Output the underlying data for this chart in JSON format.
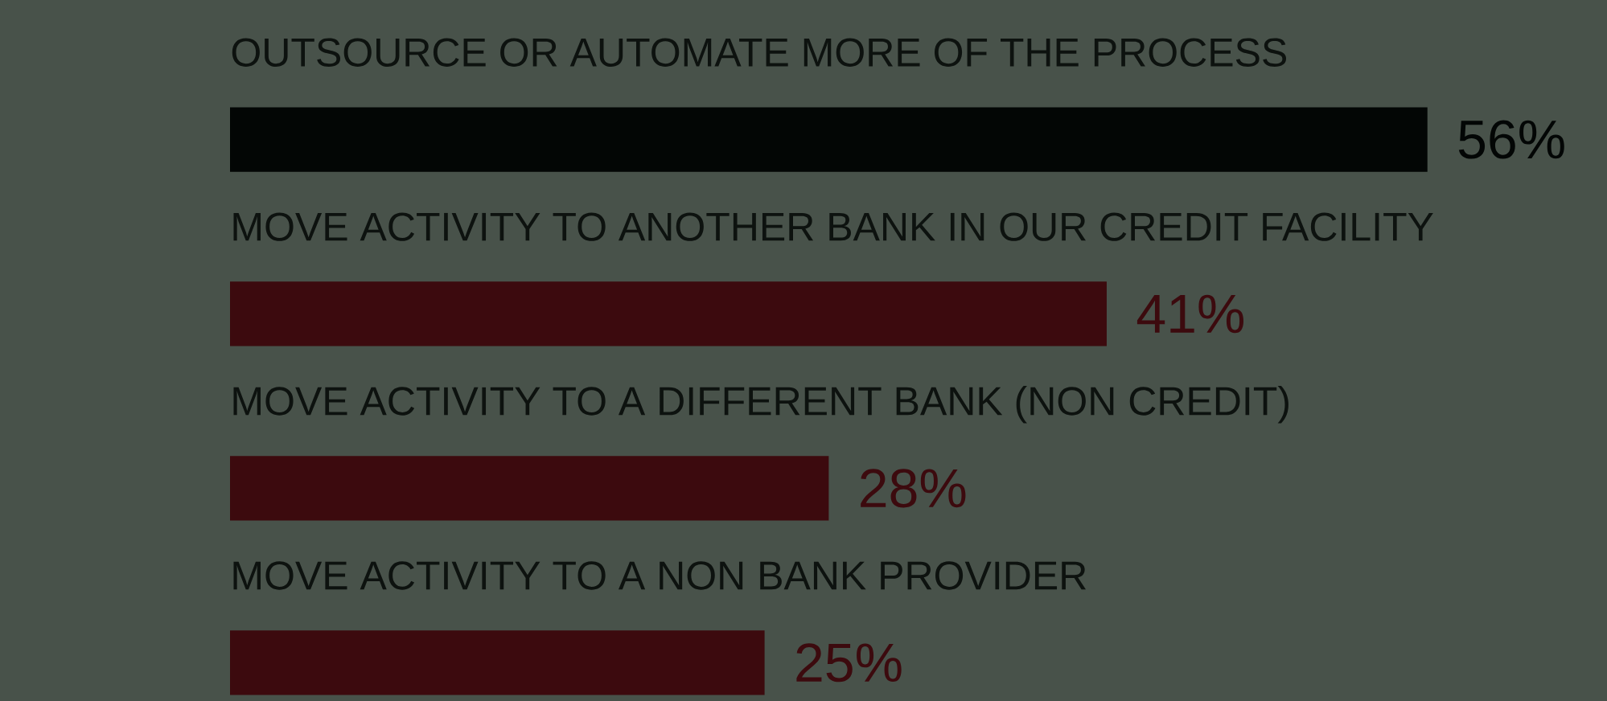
{
  "chart_data": {
    "type": "bar",
    "orientation": "horizontal",
    "categories": [
      "OUTSOURCE OR AUTOMATE MORE OF THE PROCESS",
      "MOVE ACTIVITY TO ANOTHER BANK IN OUR CREDIT FACILITY",
      "MOVE ACTIVITY TO A DIFFERENT BANK (NON CREDIT)",
      "MOVE ACTIVITY TO A NON BANK PROVIDER"
    ],
    "values": [
      56,
      41,
      28,
      25
    ],
    "value_labels": [
      "56%",
      "41%",
      "28%",
      "25%"
    ],
    "colors": [
      "#030605",
      "#3c0a0e",
      "#3c0a0e",
      "#3c0a0e"
    ]
  }
}
